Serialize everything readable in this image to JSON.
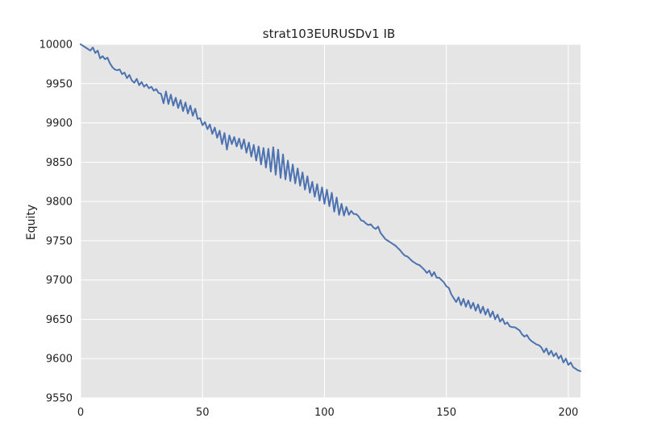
{
  "chart_data": {
    "type": "line",
    "title": "strat103EURUSDv1 IB",
    "xlabel": "",
    "ylabel": "Equity",
    "xlim": [
      0,
      205
    ],
    "ylim": [
      9550,
      10000
    ],
    "xticks": [
      0,
      50,
      100,
      150,
      200
    ],
    "yticks": [
      9550,
      9600,
      9650,
      9700,
      9750,
      9800,
      9850,
      9900,
      9950,
      10000
    ],
    "grid": true,
    "series": [
      {
        "color": "#4c72b0",
        "x": [
          0,
          1,
          2,
          3,
          4,
          5,
          6,
          7,
          8,
          9,
          10,
          11,
          12,
          13,
          14,
          15,
          16,
          17,
          18,
          19,
          20,
          21,
          22,
          23,
          24,
          25,
          26,
          27,
          28,
          29,
          30,
          31,
          32,
          33,
          34,
          35,
          36,
          37,
          38,
          39,
          40,
          41,
          42,
          43,
          44,
          45,
          46,
          47,
          48,
          49,
          50,
          51,
          52,
          53,
          54,
          55,
          56,
          57,
          58,
          59,
          60,
          61,
          62,
          63,
          64,
          65,
          66,
          67,
          68,
          69,
          70,
          71,
          72,
          73,
          74,
          75,
          76,
          77,
          78,
          79,
          80,
          81,
          82,
          83,
          84,
          85,
          86,
          87,
          88,
          89,
          90,
          91,
          92,
          93,
          94,
          95,
          96,
          97,
          98,
          99,
          100,
          101,
          102,
          103,
          104,
          105,
          106,
          107,
          108,
          109,
          110,
          111,
          112,
          113,
          114,
          115,
          116,
          117,
          118,
          119,
          120,
          121,
          122,
          123,
          124,
          125,
          126,
          127,
          128,
          129,
          130,
          131,
          132,
          133,
          134,
          135,
          136,
          137,
          138,
          139,
          140,
          141,
          142,
          143,
          144,
          145,
          146,
          147,
          148,
          149,
          150,
          151,
          152,
          153,
          154,
          155,
          156,
          157,
          158,
          159,
          160,
          161,
          162,
          163,
          164,
          165,
          166,
          167,
          168,
          169,
          170,
          171,
          172,
          173,
          174,
          175,
          176,
          177,
          178,
          179,
          180,
          181,
          182,
          183,
          184,
          185,
          186,
          187,
          188,
          189,
          190,
          191,
          192,
          193,
          194,
          195,
          196,
          197,
          198,
          199,
          200,
          201,
          202,
          203,
          204,
          205
        ],
        "y": [
          10000,
          9998,
          9996,
          9994,
          9992,
          9996,
          9989,
          9992,
          9982,
          9985,
          9981,
          9983,
          9976,
          9971,
          9968,
          9967,
          9968,
          9962,
          9964,
          9957,
          9961,
          9954,
          9951,
          9956,
          9948,
          9952,
          9946,
          9949,
          9944,
          9946,
          9941,
          9943,
          9938,
          9937,
          9925,
          9940,
          9924,
          9936,
          9922,
          9932,
          9919,
          9929,
          9915,
          9926,
          9912,
          9922,
          9909,
          9918,
          9905,
          9906,
          9897,
          9901,
          9892,
          9898,
          9886,
          9894,
          9881,
          9890,
          9873,
          9887,
          9866,
          9884,
          9873,
          9882,
          9870,
          9880,
          9867,
          9879,
          9862,
          9875,
          9857,
          9872,
          9852,
          9870,
          9847,
          9868,
          9843,
          9867,
          9838,
          9869,
          9834,
          9866,
          9830,
          9860,
          9828,
          9852,
          9826,
          9847,
          9823,
          9842,
          9820,
          9837,
          9815,
          9832,
          9811,
          9825,
          9806,
          9822,
          9801,
          9818,
          9797,
          9815,
          9794,
          9811,
          9787,
          9805,
          9783,
          9797,
          9782,
          9793,
          9783,
          9788,
          9784,
          9784,
          9781,
          9776,
          9775,
          9772,
          9770,
          9771,
          9767,
          9765,
          9768,
          9760,
          9756,
          9752,
          9750,
          9748,
          9746,
          9744,
          9741,
          9738,
          9734,
          9731,
          9730,
          9727,
          9724,
          9722,
          9720,
          9719,
          9716,
          9713,
          9709,
          9712,
          9705,
          9710,
          9703,
          9703,
          9700,
          9697,
          9692,
          9690,
          9682,
          9677,
          9672,
          9678,
          9668,
          9676,
          9666,
          9674,
          9664,
          9671,
          9661,
          9669,
          9658,
          9666,
          9656,
          9663,
          9653,
          9660,
          9650,
          9656,
          9647,
          9651,
          9644,
          9646,
          9641,
          9640,
          9640,
          9638,
          9636,
          9631,
          9628,
          9630,
          9625,
          9622,
          9620,
          9618,
          9617,
          9614,
          9608,
          9613,
          9605,
          9610,
          9603,
          9607,
          9600,
          9604,
          9595,
          9600,
          9592,
          9595,
          9589,
          9587,
          9585,
          9584
        ]
      }
    ]
  }
}
